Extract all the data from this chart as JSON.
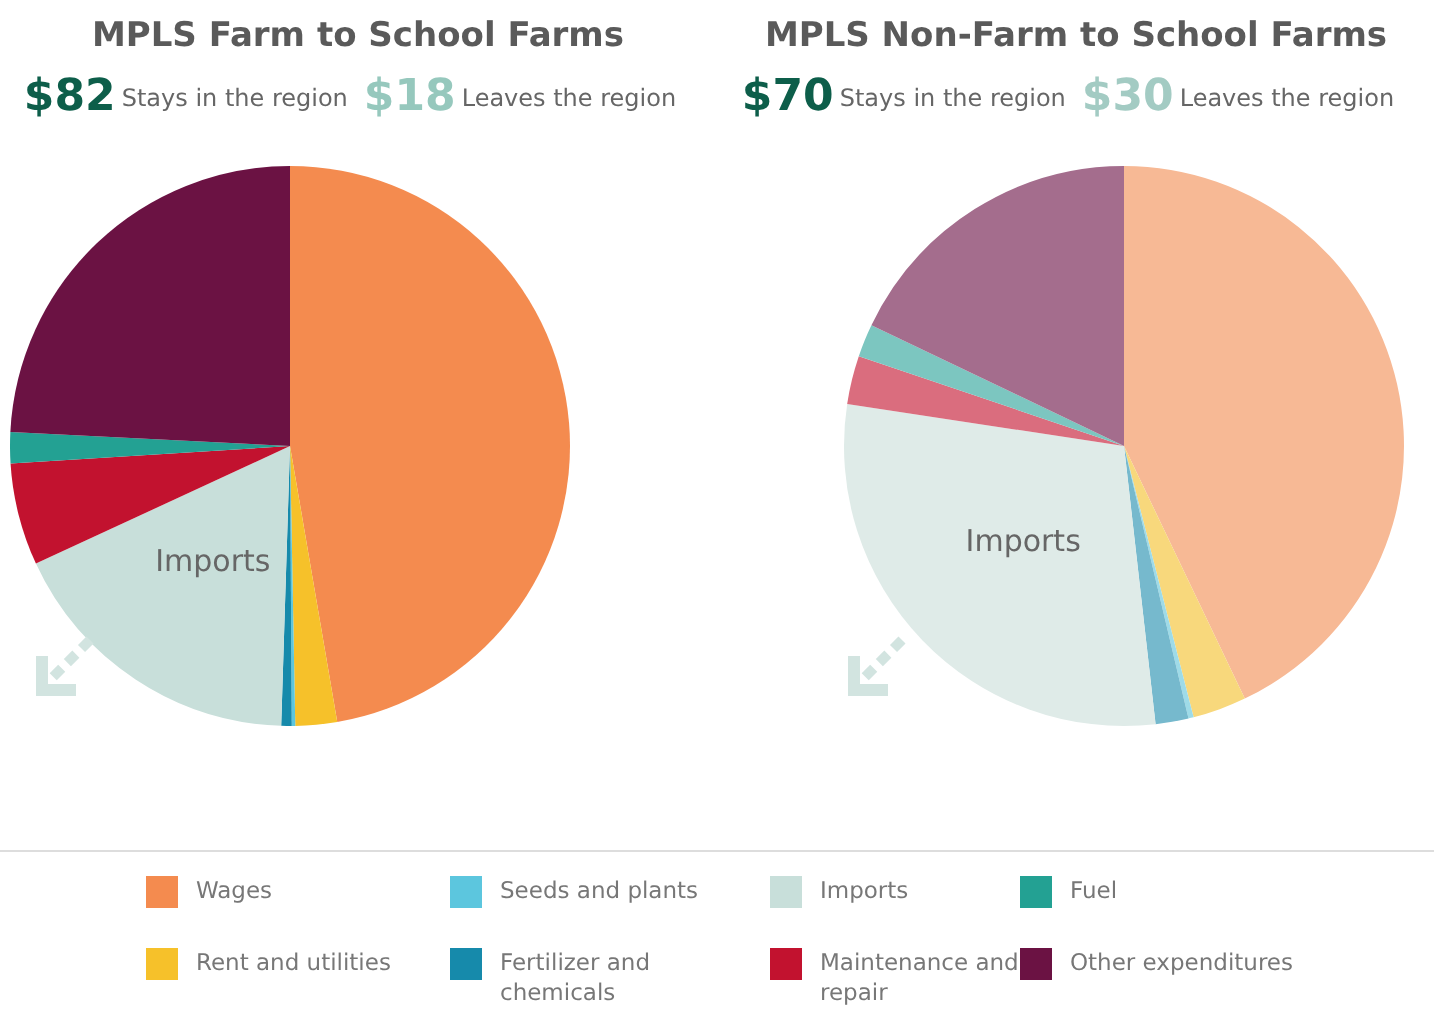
{
  "chart_data": [
    {
      "type": "pie",
      "title": "MPLS Farm to School Farms",
      "annotations": [
        "$82",
        "Stays in the region",
        "$18",
        "Leaves the region",
        {
          "text": "Imports",
          "x": "Imports"
        }
      ],
      "categories": [
        "Wages",
        "Rent and utilities",
        "Seeds and plants",
        "Fertilizer and chemicals",
        "Imports",
        "Maintenance and repair",
        "Fuel",
        "Other expenditures"
      ],
      "values": [
        47.3,
        2.4,
        0.2,
        0.6,
        17.6,
        5.9,
        1.8,
        24.2
      ],
      "colors": [
        "#f48b4f",
        "#f6c12a",
        "#5cc6de",
        "#168aab",
        "#c8dfda",
        "#c2122f",
        "#23a193",
        "#6b1243"
      ],
      "legend": "bottom"
    },
    {
      "type": "pie",
      "title": "MPLS Non-Farm to School Farms",
      "annotations": [
        "$70",
        "Stays in the region",
        "$30",
        "Leaves the region"
      ],
      "categories": [
        null,
        null,
        null,
        null,
        "Imports",
        null,
        null,
        null
      ],
      "values": [
        42.9,
        3.1,
        0.3,
        1.9,
        29.2,
        2.8,
        1.9,
        17.9
      ],
      "colors": [
        "#f7b995",
        "#f8d87c",
        "#9edbe8",
        "#76b9cd",
        "#dfebe8",
        "#da6d7e",
        "#7cc6c0",
        "#a46d8d"
      ]
    }
  ]
}
